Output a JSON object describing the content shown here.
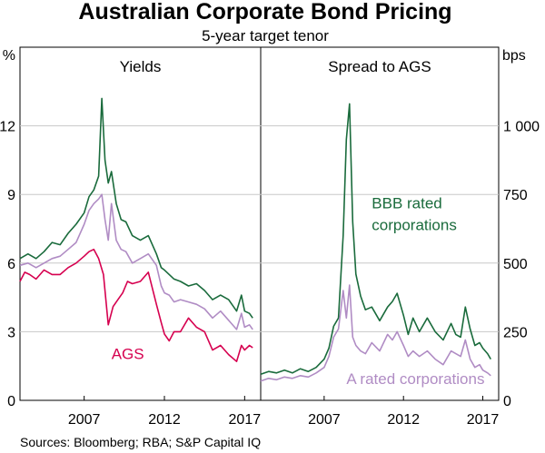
{
  "title": "Australian Corporate Bond Pricing",
  "subtitle": "5-year target tenor",
  "source": "Sources: Bloomberg; RBA; S&P Capital IQ",
  "colors": {
    "bbb": "#1a6b3c",
    "a_rated": "#b08cc4",
    "ags": "#d6004f",
    "axis": "#000000",
    "grid": "#c8c8c8"
  },
  "chart_data": [
    {
      "type": "line",
      "title": "Yields",
      "ylabel": "%",
      "ylim": [
        0,
        15
      ],
      "yticks": [
        0,
        3,
        6,
        9,
        12
      ],
      "xlim": [
        2003.0,
        2018.0
      ],
      "xticks": [
        2007,
        2012,
        2017
      ],
      "grid": true,
      "series": [
        {
          "key": "bbb",
          "x": [
            2003.0,
            2003.5,
            2004.0,
            2004.5,
            2005.0,
            2005.5,
            2006.0,
            2006.5,
            2007.0,
            2007.3,
            2007.6,
            2007.9,
            2008.1,
            2008.3,
            2008.5,
            2008.7,
            2009.0,
            2009.3,
            2009.6,
            2010.0,
            2010.5,
            2011.0,
            2011.5,
            2011.8,
            2012.0,
            2012.3,
            2012.6,
            2013.0,
            2013.5,
            2014.0,
            2014.5,
            2015.0,
            2015.5,
            2016.0,
            2016.5,
            2016.8,
            2017.0,
            2017.3,
            2017.5
          ],
          "values": [
            6.2,
            6.4,
            6.2,
            6.5,
            6.9,
            6.8,
            7.3,
            7.7,
            8.2,
            8.9,
            9.2,
            9.8,
            13.2,
            10.5,
            9.5,
            10.0,
            8.6,
            7.9,
            7.8,
            7.2,
            7.0,
            7.2,
            6.4,
            5.8,
            5.7,
            5.5,
            5.3,
            5.2,
            5.0,
            5.1,
            4.8,
            4.4,
            4.6,
            4.4,
            3.9,
            4.6,
            3.9,
            3.8,
            3.6
          ]
        },
        {
          "key": "a_rated",
          "x": [
            2003.0,
            2003.5,
            2004.0,
            2004.5,
            2005.0,
            2005.5,
            2006.0,
            2006.5,
            2007.0,
            2007.3,
            2007.6,
            2007.9,
            2008.1,
            2008.3,
            2008.5,
            2008.7,
            2009.0,
            2009.3,
            2009.6,
            2010.0,
            2010.5,
            2011.0,
            2011.5,
            2011.8,
            2012.0,
            2012.3,
            2012.6,
            2013.0,
            2013.5,
            2014.0,
            2014.5,
            2015.0,
            2015.5,
            2016.0,
            2016.5,
            2016.8,
            2017.0,
            2017.3,
            2017.5
          ],
          "values": [
            5.9,
            6.0,
            5.8,
            6.0,
            6.2,
            6.3,
            6.6,
            6.9,
            7.7,
            8.3,
            8.6,
            8.8,
            9.0,
            7.9,
            7.0,
            8.6,
            7.0,
            6.6,
            6.5,
            6.0,
            6.2,
            6.4,
            5.9,
            5.0,
            4.7,
            4.6,
            4.3,
            4.4,
            4.3,
            4.2,
            4.0,
            3.6,
            3.9,
            3.5,
            3.1,
            3.8,
            3.2,
            3.3,
            3.1
          ]
        },
        {
          "key": "ags",
          "x": [
            2003.0,
            2003.3,
            2003.6,
            2004.0,
            2004.5,
            2005.0,
            2005.5,
            2006.0,
            2006.5,
            2007.0,
            2007.3,
            2007.6,
            2007.9,
            2008.2,
            2008.5,
            2008.8,
            2009.1,
            2009.4,
            2009.7,
            2010.0,
            2010.5,
            2011.0,
            2011.5,
            2011.8,
            2012.0,
            2012.3,
            2012.6,
            2013.0,
            2013.5,
            2014.0,
            2014.5,
            2015.0,
            2015.5,
            2016.0,
            2016.5,
            2016.8,
            2017.0,
            2017.3,
            2017.5
          ],
          "values": [
            5.2,
            5.6,
            5.5,
            5.3,
            5.7,
            5.5,
            5.5,
            5.8,
            6.0,
            6.3,
            6.5,
            6.6,
            6.2,
            5.5,
            3.3,
            4.1,
            4.4,
            4.7,
            5.2,
            5.1,
            5.2,
            5.6,
            4.2,
            3.4,
            2.9,
            2.6,
            3.0,
            3.0,
            3.6,
            3.2,
            3.0,
            2.2,
            2.4,
            2.0,
            1.7,
            2.4,
            2.2,
            2.4,
            2.3
          ]
        }
      ],
      "annotations": [
        {
          "text": "AGS",
          "key": "ags",
          "x": 2008.7,
          "y": 1.8
        }
      ]
    },
    {
      "type": "line",
      "title": "Spread to AGS",
      "ylabel": "bps",
      "ylim": [
        0,
        1250
      ],
      "yticks": [
        0,
        250,
        500,
        750,
        1000
      ],
      "ytick_labels": [
        "0",
        "250",
        "500",
        "750",
        "1 000"
      ],
      "xlim": [
        2003.0,
        2018.0
      ],
      "xticks": [
        2007,
        2012,
        2017
      ],
      "grid": true,
      "series": [
        {
          "key": "bbb",
          "x": [
            2003.0,
            2003.5,
            2004.0,
            2004.5,
            2005.0,
            2005.5,
            2006.0,
            2006.5,
            2007.0,
            2007.3,
            2007.6,
            2007.9,
            2008.2,
            2008.4,
            2008.6,
            2008.8,
            2009.0,
            2009.3,
            2009.6,
            2010.0,
            2010.5,
            2011.0,
            2011.3,
            2011.6,
            2012.0,
            2012.3,
            2012.6,
            2013.0,
            2013.5,
            2014.0,
            2014.5,
            2015.0,
            2015.3,
            2015.6,
            2015.9,
            2016.2,
            2016.5,
            2016.8,
            2017.0,
            2017.3,
            2017.5
          ],
          "values": [
            95,
            105,
            100,
            110,
            100,
            115,
            105,
            120,
            150,
            190,
            270,
            300,
            600,
            950,
            1080,
            650,
            460,
            380,
            330,
            340,
            290,
            340,
            360,
            390,
            310,
            240,
            300,
            250,
            300,
            250,
            220,
            280,
            240,
            230,
            340,
            260,
            200,
            210,
            190,
            170,
            150
          ]
        },
        {
          "key": "a_rated",
          "x": [
            2003.0,
            2003.5,
            2004.0,
            2004.5,
            2005.0,
            2005.5,
            2006.0,
            2006.5,
            2007.0,
            2007.3,
            2007.6,
            2007.9,
            2008.2,
            2008.4,
            2008.6,
            2008.8,
            2009.0,
            2009.3,
            2009.6,
            2010.0,
            2010.5,
            2011.0,
            2011.3,
            2011.6,
            2012.0,
            2012.3,
            2012.6,
            2013.0,
            2013.5,
            2014.0,
            2014.5,
            2015.0,
            2015.3,
            2015.6,
            2015.9,
            2016.2,
            2016.5,
            2016.8,
            2017.0,
            2017.3,
            2017.5
          ],
          "values": [
            70,
            80,
            75,
            85,
            80,
            90,
            85,
            100,
            120,
            160,
            230,
            260,
            400,
            300,
            420,
            230,
            200,
            180,
            170,
            210,
            180,
            240,
            220,
            250,
            200,
            160,
            180,
            160,
            180,
            150,
            130,
            180,
            170,
            160,
            220,
            150,
            120,
            130,
            110,
            100,
            90
          ]
        }
      ],
      "annotations": [
        {
          "text": "BBB rated",
          "key": "bbb",
          "x": 2010.0,
          "y": 700
        },
        {
          "text": "corporations",
          "key": "bbb",
          "x": 2010.0,
          "y": 620
        },
        {
          "text": "A rated corporations",
          "key": "a_rated",
          "x": 2008.4,
          "y": 60
        }
      ]
    }
  ]
}
